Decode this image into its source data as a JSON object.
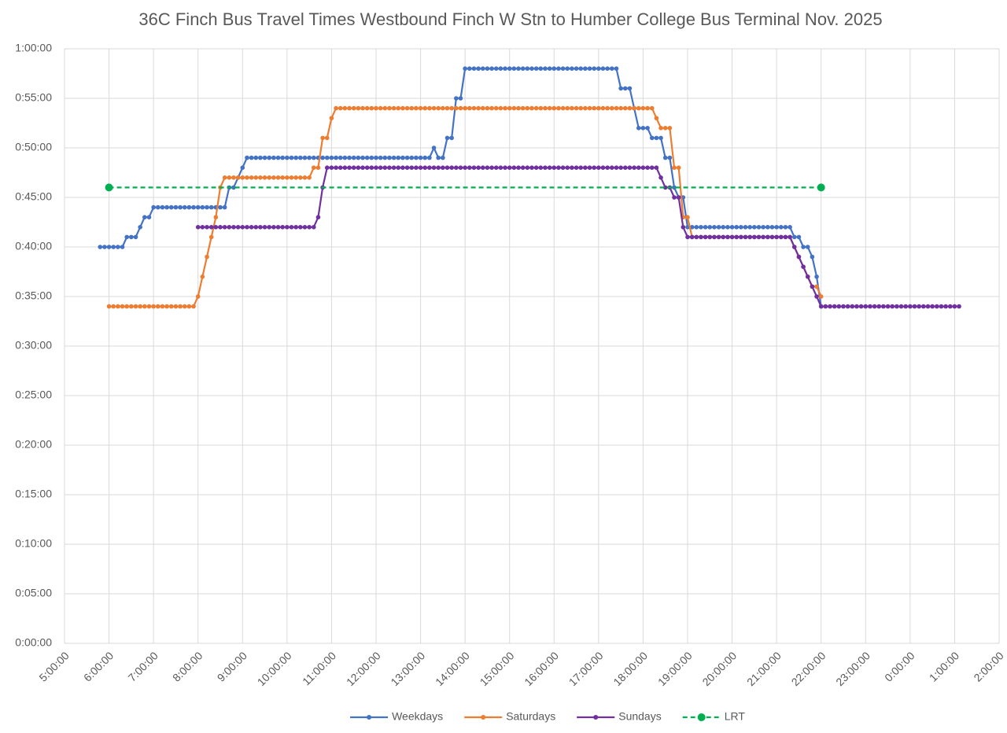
{
  "chart_data": {
    "type": "line",
    "title": "36C Finch Bus Travel Times Westbound Finch W Stn to Humber College Bus Terminal Nov. 2025",
    "x": [
      5.8,
      5.9,
      6,
      6.1,
      6.2,
      6.3,
      6.4,
      6.5,
      6.6,
      6.7,
      6.8,
      6.9,
      7,
      7.1,
      7.2,
      7.3,
      7.4,
      7.5,
      7.6,
      7.7,
      7.8,
      7.9,
      8,
      8.1,
      8.2,
      8.3,
      8.4,
      8.5,
      8.6,
      8.7,
      8.8,
      8.9,
      9,
      9.1,
      9.2,
      9.3,
      9.4,
      9.5,
      9.6,
      9.7,
      9.8,
      9.9,
      10,
      10.1,
      10.2,
      10.3,
      10.4,
      10.5,
      10.6,
      10.7,
      10.8,
      10.9,
      11,
      11.1,
      11.2,
      11.3,
      11.4,
      11.5,
      11.6,
      11.7,
      11.8,
      11.9,
      12,
      12.1,
      12.2,
      12.3,
      12.4,
      12.5,
      12.6,
      12.7,
      12.8,
      12.9,
      13,
      13.1,
      13.2,
      13.3,
      13.4,
      13.5,
      13.6,
      13.7,
      13.8,
      13.9,
      14,
      14.1,
      14.2,
      14.3,
      14.4,
      14.5,
      14.6,
      14.7,
      14.8,
      14.9,
      15,
      15.1,
      15.2,
      15.3,
      15.4,
      15.5,
      15.6,
      15.7,
      15.8,
      15.9,
      16,
      16.1,
      16.2,
      16.3,
      16.4,
      16.5,
      16.6,
      16.7,
      16.8,
      16.9,
      17,
      17.1,
      17.2,
      17.3,
      17.4,
      17.5,
      17.6,
      17.7,
      17.8,
      17.9,
      18,
      18.1,
      18.2,
      18.3,
      18.4,
      18.5,
      18.6,
      18.7,
      18.8,
      18.9,
      19,
      19.1,
      19.2,
      19.3,
      19.4,
      19.5,
      19.6,
      19.7,
      19.8,
      19.9,
      20,
      20.1,
      20.2,
      20.3,
      20.4,
      20.5,
      20.6,
      20.7,
      20.8,
      20.9,
      21,
      21.1,
      21.2,
      21.3,
      21.4,
      21.5,
      21.6,
      21.7,
      21.8,
      21.9,
      22,
      22.1,
      22.2,
      22.3,
      22.4,
      22.5,
      22.6,
      22.7,
      22.8,
      22.9,
      23,
      23.1,
      23.2,
      23.3,
      23.4,
      23.5,
      23.6,
      23.7,
      23.8,
      23.9,
      24,
      24.1,
      24.2,
      24.3,
      24.4,
      24.5,
      24.6,
      24.7,
      24.8,
      24.9,
      25,
      25.1
    ],
    "series": [
      {
        "name": "Weekdays",
        "color": "#4472c4",
        "values": [
          40,
          40,
          40,
          40,
          40,
          40,
          41,
          41,
          41,
          42,
          43,
          43,
          44,
          44,
          44,
          44,
          44,
          44,
          44,
          44,
          44,
          44,
          44,
          44,
          44,
          44,
          44,
          44,
          44,
          46,
          46,
          47,
          48,
          49,
          49,
          49,
          49,
          49,
          49,
          49,
          49,
          49,
          49,
          49,
          49,
          49,
          49,
          49,
          49,
          49,
          49,
          49,
          49,
          49,
          49,
          49,
          49,
          49,
          49,
          49,
          49,
          49,
          49,
          49,
          49,
          49,
          49,
          49,
          49,
          49,
          49,
          49,
          49,
          49,
          49,
          50,
          49,
          49,
          51,
          51,
          55,
          55,
          58,
          58,
          58,
          58,
          58,
          58,
          58,
          58,
          58,
          58,
          58,
          58,
          58,
          58,
          58,
          58,
          58,
          58,
          58,
          58,
          58,
          58,
          58,
          58,
          58,
          58,
          58,
          58,
          58,
          58,
          58,
          58,
          58,
          58,
          58,
          56,
          56,
          56,
          54,
          52,
          52,
          52,
          51,
          51,
          51,
          49,
          49,
          46,
          45,
          45,
          42,
          42,
          42,
          42,
          42,
          42,
          42,
          42,
          42,
          42,
          42,
          42,
          42,
          42,
          42,
          42,
          42,
          42,
          42,
          42,
          42,
          42,
          42,
          42,
          41,
          41,
          40,
          40,
          39,
          37,
          34,
          null,
          null,
          null,
          null,
          null,
          null,
          null,
          null,
          null,
          null,
          null,
          null,
          null,
          null,
          null,
          null,
          null,
          null,
          null,
          null,
          null,
          null,
          null,
          null,
          null,
          null,
          null,
          null,
          null,
          null,
          null
        ]
      },
      {
        "name": "Saturdays",
        "color": "#ed7d31",
        "values": [
          null,
          null,
          34,
          34,
          34,
          34,
          34,
          34,
          34,
          34,
          34,
          34,
          34,
          34,
          34,
          34,
          34,
          34,
          34,
          34,
          34,
          34,
          35,
          37,
          39,
          41,
          43,
          46,
          47,
          47,
          47,
          47,
          47,
          47,
          47,
          47,
          47,
          47,
          47,
          47,
          47,
          47,
          47,
          47,
          47,
          47,
          47,
          47,
          48,
          48,
          51,
          51,
          53,
          54,
          54,
          54,
          54,
          54,
          54,
          54,
          54,
          54,
          54,
          54,
          54,
          54,
          54,
          54,
          54,
          54,
          54,
          54,
          54,
          54,
          54,
          54,
          54,
          54,
          54,
          54,
          54,
          54,
          54,
          54,
          54,
          54,
          54,
          54,
          54,
          54,
          54,
          54,
          54,
          54,
          54,
          54,
          54,
          54,
          54,
          54,
          54,
          54,
          54,
          54,
          54,
          54,
          54,
          54,
          54,
          54,
          54,
          54,
          54,
          54,
          54,
          54,
          54,
          54,
          54,
          54,
          54,
          54,
          54,
          54,
          54,
          53,
          52,
          52,
          52,
          48,
          48,
          43,
          43,
          41,
          41,
          41,
          41,
          41,
          41,
          41,
          41,
          41,
          41,
          41,
          41,
          41,
          41,
          41,
          41,
          41,
          41,
          41,
          41,
          41,
          41,
          41,
          40,
          39,
          38,
          37,
          36,
          36,
          35,
          null,
          null,
          null,
          null,
          null,
          null,
          null,
          null,
          null,
          null,
          null,
          null,
          null,
          null,
          null,
          null,
          null,
          null,
          null,
          null,
          null,
          null,
          null,
          null,
          null,
          null,
          null,
          null,
          null,
          null,
          null
        ]
      },
      {
        "name": "Sundays",
        "color": "#7030a0",
        "values": [
          null,
          null,
          null,
          null,
          null,
          null,
          null,
          null,
          null,
          null,
          null,
          null,
          null,
          null,
          null,
          null,
          null,
          null,
          null,
          null,
          null,
          null,
          42,
          42,
          42,
          42,
          42,
          42,
          42,
          42,
          42,
          42,
          42,
          42,
          42,
          42,
          42,
          42,
          42,
          42,
          42,
          42,
          42,
          42,
          42,
          42,
          42,
          42,
          42,
          43,
          46,
          48,
          48,
          48,
          48,
          48,
          48,
          48,
          48,
          48,
          48,
          48,
          48,
          48,
          48,
          48,
          48,
          48,
          48,
          48,
          48,
          48,
          48,
          48,
          48,
          48,
          48,
          48,
          48,
          48,
          48,
          48,
          48,
          48,
          48,
          48,
          48,
          48,
          48,
          48,
          48,
          48,
          48,
          48,
          48,
          48,
          48,
          48,
          48,
          48,
          48,
          48,
          48,
          48,
          48,
          48,
          48,
          48,
          48,
          48,
          48,
          48,
          48,
          48,
          48,
          48,
          48,
          48,
          48,
          48,
          48,
          48,
          48,
          48,
          48,
          48,
          47,
          46,
          46,
          45,
          45,
          42,
          41,
          41,
          41,
          41,
          41,
          41,
          41,
          41,
          41,
          41,
          41,
          41,
          41,
          41,
          41,
          41,
          41,
          41,
          41,
          41,
          41,
          41,
          41,
          41,
          40,
          39,
          38,
          37,
          36,
          35,
          34,
          34,
          34,
          34,
          34,
          34,
          34,
          34,
          34,
          34,
          34,
          34,
          34,
          34,
          34,
          34,
          34,
          34,
          34,
          34,
          34,
          34,
          34,
          34,
          34,
          34,
          34,
          34,
          34,
          34,
          34,
          34
        ]
      },
      {
        "name": "LRT",
        "color": "#00b050",
        "style": "dashed",
        "x": [
          6,
          22
        ],
        "values": [
          46,
          46
        ]
      }
    ],
    "xlim": [
      5,
      26
    ],
    "xticks": [
      {
        "value": 5,
        "label": "5:00:00"
      },
      {
        "value": 6,
        "label": "6:00:00"
      },
      {
        "value": 7,
        "label": "7:00:00"
      },
      {
        "value": 8,
        "label": "8:00:00"
      },
      {
        "value": 9,
        "label": "9:00:00"
      },
      {
        "value": 10,
        "label": "10:00:00"
      },
      {
        "value": 11,
        "label": "11:00:00"
      },
      {
        "value": 12,
        "label": "12:00:00"
      },
      {
        "value": 13,
        "label": "13:00:00"
      },
      {
        "value": 14,
        "label": "14:00:00"
      },
      {
        "value": 15,
        "label": "15:00:00"
      },
      {
        "value": 16,
        "label": "16:00:00"
      },
      {
        "value": 17,
        "label": "17:00:00"
      },
      {
        "value": 18,
        "label": "18:00:00"
      },
      {
        "value": 19,
        "label": "19:00:00"
      },
      {
        "value": 20,
        "label": "20:00:00"
      },
      {
        "value": 21,
        "label": "21:00:00"
      },
      {
        "value": 22,
        "label": "22:00:00"
      },
      {
        "value": 23,
        "label": "23:00:00"
      },
      {
        "value": 24,
        "label": "0:00:00"
      },
      {
        "value": 25,
        "label": "1:00:00"
      },
      {
        "value": 26,
        "label": "2:00:00"
      }
    ],
    "ylim": [
      0,
      60
    ],
    "yticks": [
      {
        "value": 0,
        "label": "0:00:00"
      },
      {
        "value": 5,
        "label": "0:05:00"
      },
      {
        "value": 10,
        "label": "0:10:00"
      },
      {
        "value": 15,
        "label": "0:15:00"
      },
      {
        "value": 20,
        "label": "0:20:00"
      },
      {
        "value": 25,
        "label": "0:25:00"
      },
      {
        "value": 30,
        "label": "0:30:00"
      },
      {
        "value": 35,
        "label": "0:35:00"
      },
      {
        "value": 40,
        "label": "0:40:00"
      },
      {
        "value": 45,
        "label": "0:45:00"
      },
      {
        "value": 50,
        "label": "0:50:00"
      },
      {
        "value": 55,
        "label": "0:55:00"
      },
      {
        "value": 60,
        "label": "1:00:00"
      }
    ],
    "grid": true,
    "legend": "bottom"
  }
}
